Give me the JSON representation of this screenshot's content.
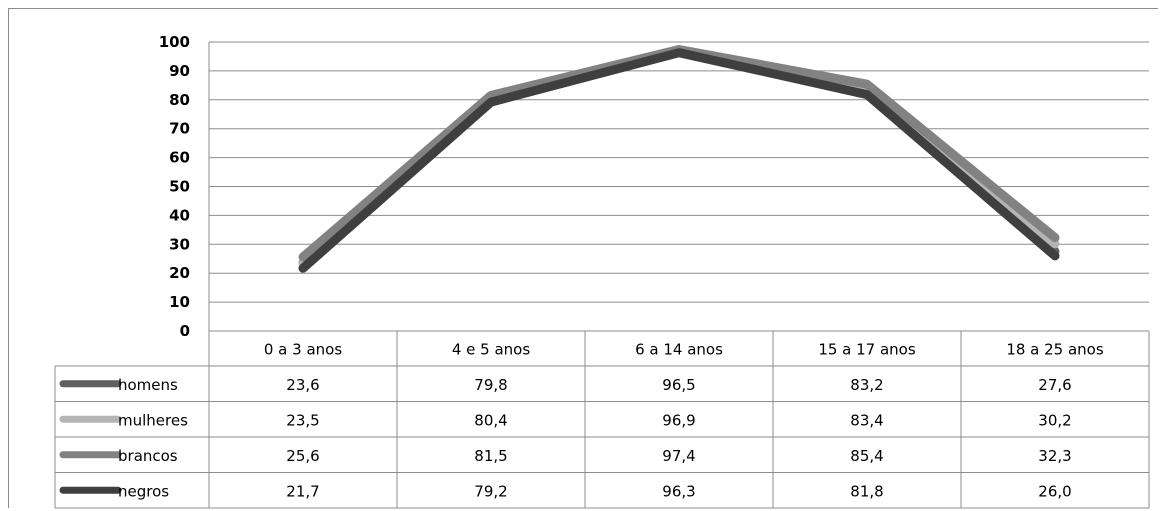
{
  "chart_data": {
    "type": "line",
    "title": "",
    "xlabel": "",
    "ylabel": "",
    "categories": [
      "0 a 3 anos",
      "4 e 5 anos",
      "6 a 14 anos",
      "15 a 17 anos",
      "18 a 25 anos"
    ],
    "y_ticks": [
      "0",
      "10",
      "20",
      "30",
      "40",
      "50",
      "60",
      "70",
      "80",
      "90",
      "100"
    ],
    "ylim": [
      0,
      100
    ],
    "grid": true,
    "legend": "data-table-left",
    "series": [
      {
        "name": "homens",
        "color": "#5f5f5f",
        "values": [
          23.6,
          79.8,
          96.5,
          83.2,
          27.6
        ],
        "labels": [
          "23,6",
          "79,8",
          "96,5",
          "83,2",
          "27,6"
        ]
      },
      {
        "name": "mulheres",
        "color": "#b4b4b4",
        "values": [
          23.5,
          80.4,
          96.9,
          83.4,
          30.2
        ],
        "labels": [
          "23,5",
          "80,4",
          "96,9",
          "83,4",
          "30,2"
        ]
      },
      {
        "name": "brancos",
        "color": "#828282",
        "values": [
          25.6,
          81.5,
          97.4,
          85.4,
          32.3
        ],
        "labels": [
          "25,6",
          "81,5",
          "97,4",
          "85,4",
          "32,3"
        ]
      },
      {
        "name": "negros",
        "color": "#3f3f3f",
        "values": [
          21.7,
          79.2,
          96.3,
          81.8,
          26.0
        ],
        "labels": [
          "21,7",
          "79,2",
          "96,3",
          "81,8",
          "26,0"
        ]
      }
    ]
  }
}
